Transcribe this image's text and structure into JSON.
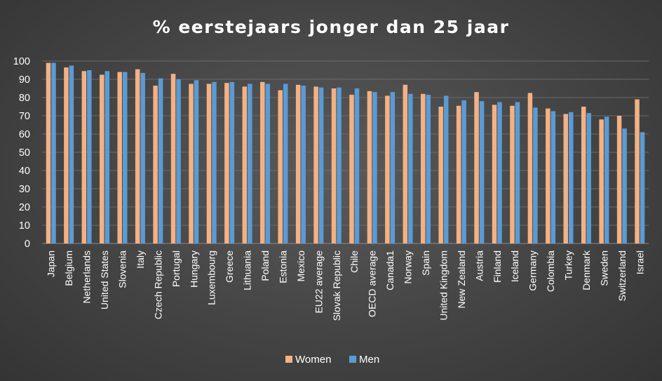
{
  "chart_data": {
    "type": "bar",
    "title": "% eerstejaars jonger dan 25 jaar",
    "xlabel": "",
    "ylabel": "",
    "ylim": [
      0,
      100
    ],
    "yticks": [
      0,
      10,
      20,
      30,
      40,
      50,
      60,
      70,
      80,
      90,
      100
    ],
    "grid": true,
    "legend_position": "bottom",
    "categories": [
      "Japan",
      "Belgium",
      "Netherlands",
      "United States",
      "Slovenia",
      "Italy",
      "Czech Republic",
      "Portugal",
      "Hungary",
      "Luxembourg",
      "Greece",
      "Lithuania",
      "Poland",
      "Estonia",
      "Mexico",
      "EU22 average",
      "Slovak Republic",
      "Chile",
      "OECD average",
      "Canada1",
      "Norway",
      "Spain",
      "United Kingdom",
      "New Zealand",
      "Austria",
      "Finland",
      "Iceland",
      "Germany",
      "Colombia",
      "Turkey",
      "Denmark",
      "Sweden",
      "Switzerland",
      "Israel"
    ],
    "series": [
      {
        "name": "Women",
        "color": "#f4b183",
        "values": [
          99,
          96.5,
          94.5,
          92.5,
          94,
          95.5,
          86.5,
          93,
          87.5,
          87.5,
          88,
          86,
          88.5,
          84,
          87,
          86,
          85,
          81.5,
          83.5,
          81,
          87,
          82,
          75,
          75.5,
          83,
          76,
          75.5,
          82.5,
          74,
          71,
          75,
          68,
          70,
          79
        ]
      },
      {
        "name": "Men",
        "color": "#5b9bd5",
        "values": [
          99,
          97.5,
          95,
          94.5,
          94,
          93.5,
          90.5,
          90,
          89.5,
          88.5,
          88.5,
          87.5,
          87.5,
          87.5,
          86.5,
          85.5,
          85.5,
          85,
          83,
          83,
          82,
          81.5,
          81,
          78.5,
          78,
          77.5,
          77.5,
          74.5,
          72.5,
          72,
          71.5,
          69.5,
          63,
          61
        ]
      }
    ]
  }
}
